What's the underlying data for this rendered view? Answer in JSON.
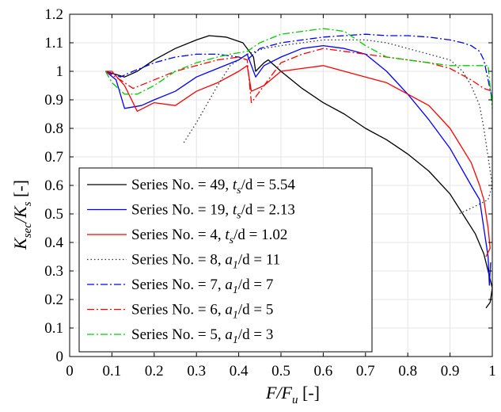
{
  "chart_data": {
    "type": "line",
    "xlabel": "F/F_u [-]",
    "ylabel": "K_sec/K_s [-]",
    "xlim": [
      0,
      1
    ],
    "ylim": [
      0,
      1.2
    ],
    "xticks": [
      0,
      0.1,
      0.2,
      0.3,
      0.4,
      0.5,
      0.6,
      0.7,
      0.8,
      0.9,
      1
    ],
    "yticks": [
      0,
      0.1,
      0.2,
      0.3,
      0.4,
      0.5,
      0.6,
      0.7,
      0.8,
      0.9,
      1,
      1.1,
      1.2
    ],
    "grid": true,
    "legend_position": "bottom-left",
    "series": [
      {
        "name": "Series No. = 49, t_s/d = 5.54",
        "color": "#000000",
        "dash": "solid",
        "x": [
          0.085,
          0.13,
          0.16,
          0.2,
          0.25,
          0.3,
          0.33,
          0.37,
          0.41,
          0.43,
          0.435,
          0.44,
          0.46,
          0.47,
          0.5,
          0.55,
          0.6,
          0.65,
          0.7,
          0.75,
          0.8,
          0.85,
          0.9,
          0.93,
          0.96,
          0.98,
          0.99,
          1.0,
          0.995,
          0.985
        ],
        "y": [
          1.0,
          0.98,
          1.0,
          1.04,
          1.08,
          1.11,
          1.125,
          1.12,
          1.1,
          1.06,
          1.05,
          1.0,
          1.03,
          1.04,
          1.0,
          0.94,
          0.89,
          0.85,
          0.8,
          0.76,
          0.71,
          0.65,
          0.57,
          0.5,
          0.43,
          0.36,
          0.3,
          0.24,
          0.19,
          0.17
        ]
      },
      {
        "name": "Series No. = 19, t_s/d = 2.13",
        "color": "#0000ff",
        "dash": "solid",
        "x": [
          0.085,
          0.11,
          0.13,
          0.17,
          0.2,
          0.25,
          0.3,
          0.35,
          0.4,
          0.42,
          0.44,
          0.46,
          0.5,
          0.55,
          0.6,
          0.65,
          0.7,
          0.75,
          0.8,
          0.85,
          0.9,
          0.95,
          0.97,
          0.98,
          0.99,
          0.993,
          0.996
        ],
        "y": [
          1.0,
          0.97,
          0.87,
          0.88,
          0.9,
          0.93,
          0.98,
          1.01,
          1.04,
          1.06,
          0.98,
          1.02,
          1.05,
          1.08,
          1.09,
          1.08,
          1.06,
          1.0,
          0.92,
          0.83,
          0.73,
          0.6,
          0.55,
          0.45,
          0.35,
          0.25,
          0.33
        ]
      },
      {
        "name": "Series No. = 4, t_s/d = 1.02",
        "color": "#ff0000",
        "dash": "solid",
        "x": [
          0.085,
          0.1,
          0.13,
          0.16,
          0.2,
          0.25,
          0.3,
          0.35,
          0.4,
          0.42,
          0.43,
          0.46,
          0.5,
          0.55,
          0.6,
          0.65,
          0.7,
          0.75,
          0.8,
          0.85,
          0.9,
          0.95,
          0.97,
          0.98,
          0.99,
          0.995,
          0.985
        ],
        "y": [
          1.0,
          1.0,
          0.95,
          0.86,
          0.89,
          0.88,
          0.93,
          0.96,
          1.0,
          1.02,
          0.93,
          0.95,
          1.0,
          1.01,
          1.02,
          1.0,
          0.98,
          0.96,
          0.92,
          0.88,
          0.8,
          0.68,
          0.6,
          0.55,
          0.45,
          0.38,
          0.35
        ]
      },
      {
        "name": "Series No. = 8, a_1/d = 11",
        "color": "#333333",
        "dash": "dotted",
        "x": [
          0.27,
          0.3,
          0.35,
          0.38,
          0.42,
          0.46,
          0.5,
          0.55,
          0.6,
          0.65,
          0.7,
          0.75,
          0.8,
          0.85,
          0.9,
          0.93,
          0.95,
          0.97,
          0.98,
          0.99,
          1.0,
          0.99,
          0.95,
          0.92
        ],
        "y": [
          0.75,
          0.82,
          0.95,
          1.02,
          1.06,
          1.08,
          1.09,
          1.1,
          1.11,
          1.11,
          1.11,
          1.1,
          1.08,
          1.06,
          1.04,
          1.0,
          0.95,
          0.88,
          0.8,
          0.7,
          0.6,
          0.55,
          0.52,
          0.5
        ]
      },
      {
        "name": "Series No. = 7, a_1/d = 7",
        "color": "#0000ff",
        "dash": "dashdot",
        "x": [
          0.085,
          0.12,
          0.15,
          0.2,
          0.25,
          0.3,
          0.35,
          0.4,
          0.42,
          0.45,
          0.5,
          0.55,
          0.6,
          0.65,
          0.7,
          0.75,
          0.8,
          0.85,
          0.9,
          0.93,
          0.95,
          0.97,
          0.98,
          0.99,
          1.0
        ],
        "y": [
          1.0,
          0.98,
          1.0,
          1.03,
          1.05,
          1.06,
          1.06,
          1.05,
          1.04,
          1.08,
          1.1,
          1.11,
          1.12,
          1.125,
          1.13,
          1.125,
          1.125,
          1.12,
          1.11,
          1.1,
          1.09,
          1.07,
          1.04,
          0.97,
          0.9
        ]
      },
      {
        "name": "Series No. = 6, a_1/d = 5",
        "color": "#ff0000",
        "dash": "dashdot",
        "x": [
          0.085,
          0.12,
          0.15,
          0.2,
          0.25,
          0.3,
          0.35,
          0.4,
          0.42,
          0.43,
          0.45,
          0.5,
          0.55,
          0.6,
          0.65,
          0.7,
          0.75,
          0.8,
          0.85,
          0.9,
          0.95,
          0.98,
          1.0
        ],
        "y": [
          1.0,
          0.97,
          0.94,
          0.97,
          1.0,
          1.02,
          1.04,
          1.05,
          1.04,
          0.89,
          0.93,
          1.03,
          1.06,
          1.08,
          1.07,
          1.06,
          1.05,
          1.04,
          1.03,
          1.01,
          0.97,
          0.94,
          0.93
        ]
      },
      {
        "name": "Series No. = 5, a_1/d = 3",
        "color": "#00cc00",
        "dash": "dashdot",
        "x": [
          0.085,
          0.1,
          0.13,
          0.16,
          0.2,
          0.25,
          0.3,
          0.35,
          0.38,
          0.42,
          0.45,
          0.5,
          0.55,
          0.6,
          0.65,
          0.7,
          0.75,
          0.8,
          0.85,
          0.9,
          0.95,
          0.99,
          1.0
        ],
        "y": [
          1.0,
          0.96,
          0.92,
          0.92,
          0.95,
          1.0,
          1.03,
          1.05,
          1.06,
          1.07,
          1.1,
          1.13,
          1.14,
          1.15,
          1.14,
          1.09,
          1.05,
          1.04,
          1.03,
          1.02,
          1.02,
          1.02,
          0.87
        ]
      }
    ]
  },
  "legend": {
    "entries": [
      {
        "prefix": "Series No. = 49,",
        "var": "t",
        "sub": "s",
        "suffix": "/d = 5.54"
      },
      {
        "prefix": "Series No. = 19,",
        "var": "t",
        "sub": "s",
        "suffix": "/d = 2.13"
      },
      {
        "prefix": "Series No. = 4,",
        "var": "t",
        "sub": "s",
        "suffix": "/d = 1.02"
      },
      {
        "prefix": "Series No. = 8,",
        "var": "a",
        "sub": "1",
        "suffix": "/d = 11"
      },
      {
        "prefix": "Series No. = 7,",
        "var": "a",
        "sub": "1",
        "suffix": "/d = 7"
      },
      {
        "prefix": "Series No. = 6,",
        "var": "a",
        "sub": "1",
        "suffix": "/d = 5"
      },
      {
        "prefix": "Series No. = 5,",
        "var": "a",
        "sub": "1",
        "suffix": "/d = 3"
      }
    ]
  },
  "axes": {
    "xlabel_main": "F/F",
    "xlabel_sub": "u",
    "xlabel_unit": "[-]",
    "ylabel_main": "K",
    "ylabel_sub1": "sec",
    "ylabel_mid": "/K",
    "ylabel_sub2": "s",
    "ylabel_unit": "[-]"
  }
}
